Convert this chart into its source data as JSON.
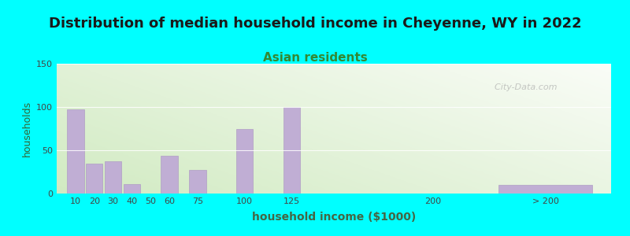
{
  "title": "Distribution of median household income in Cheyenne, WY in 2022",
  "subtitle": "Asian residents",
  "xlabel": "household income ($1000)",
  "ylabel": "households",
  "background_outer": "#00FFFF",
  "bar_color": "#c0aed4",
  "bar_edge_color": "#b09ec4",
  "title_fontsize": 13,
  "title_color": "#1a1a1a",
  "subtitle_fontsize": 11,
  "subtitle_color": "#338833",
  "ylabel_color": "#336633",
  "xlabel_color": "#446644",
  "tick_color": "#444444",
  "categories": [
    "10",
    "20",
    "30",
    "40",
    "50",
    "60",
    "75",
    "100",
    "125",
    "200",
    "> 200"
  ],
  "values": [
    97,
    35,
    37,
    11,
    0,
    44,
    27,
    75,
    100,
    0,
    10
  ],
  "x_positions": [
    1,
    2,
    3,
    4,
    5,
    6,
    7.5,
    10,
    12.5,
    20,
    26
  ],
  "bar_widths": [
    0.9,
    0.9,
    0.9,
    0.9,
    0.9,
    0.9,
    0.9,
    0.9,
    0.9,
    0.9,
    5.0
  ],
  "ylim": [
    0,
    150
  ],
  "yticks": [
    0,
    50,
    100,
    150
  ],
  "watermark": "  City-Data.com"
}
